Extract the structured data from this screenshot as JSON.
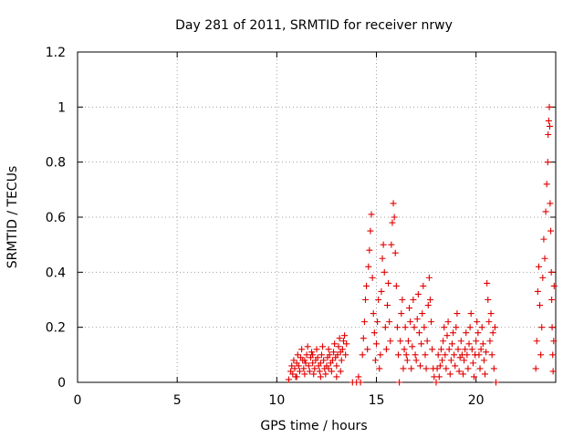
{
  "chart_data": {
    "type": "scatter",
    "title": "Day 281 of 2011, SRMTID for receiver nrwy",
    "xlabel": "GPS time / hours",
    "ylabel": "SRMTID / TECUs",
    "xlim": [
      0,
      24
    ],
    "ylim": [
      0,
      1.2
    ],
    "xticks": [
      0,
      5,
      10,
      15,
      20
    ],
    "xtick_labels": [
      "0",
      "5",
      "10",
      "15",
      "20"
    ],
    "yticks": [
      0,
      0.2,
      0.4,
      0.6,
      0.8,
      1,
      1.2
    ],
    "ytick_labels": [
      "0",
      "0.2",
      "0.4",
      "0.6",
      "0.8",
      "1",
      "1.2"
    ],
    "grid": true,
    "marker": "+",
    "color": "#e00000",
    "series": [
      {
        "name": "SRMTID",
        "points": [
          [
            10.6,
            0.01
          ],
          [
            10.7,
            0.04
          ],
          [
            10.75,
            0.06
          ],
          [
            10.8,
            0.03
          ],
          [
            10.85,
            0.08
          ],
          [
            10.9,
            0.05
          ],
          [
            10.95,
            0.02
          ],
          [
            11.0,
            0.07
          ],
          [
            11.05,
            0.1
          ],
          [
            11.1,
            0.06
          ],
          [
            11.15,
            0.04
          ],
          [
            11.2,
            0.09
          ],
          [
            11.25,
            0.12
          ],
          [
            11.3,
            0.08
          ],
          [
            11.35,
            0.05
          ],
          [
            11.4,
            0.03
          ],
          [
            11.45,
            0.07
          ],
          [
            11.5,
            0.1
          ],
          [
            11.55,
            0.13
          ],
          [
            11.6,
            0.06
          ],
          [
            11.65,
            0.04
          ],
          [
            11.7,
            0.09
          ],
          [
            11.75,
            0.11
          ],
          [
            11.8,
            0.07
          ],
          [
            11.85,
            0.03
          ],
          [
            11.9,
            0.05
          ],
          [
            11.95,
            0.08
          ],
          [
            12.0,
            0.12
          ],
          [
            12.05,
            0.09
          ],
          [
            12.1,
            0.06
          ],
          [
            12.15,
            0.04
          ],
          [
            12.2,
            0.07
          ],
          [
            12.25,
            0.1
          ],
          [
            12.3,
            0.13
          ],
          [
            12.35,
            0.08
          ],
          [
            12.4,
            0.05
          ],
          [
            12.45,
            0.03
          ],
          [
            12.5,
            0.06
          ],
          [
            12.55,
            0.09
          ],
          [
            12.6,
            0.12
          ],
          [
            12.65,
            0.1
          ],
          [
            12.7,
            0.07
          ],
          [
            12.75,
            0.04
          ],
          [
            12.8,
            0.08
          ],
          [
            12.85,
            0.11
          ],
          [
            12.9,
            0.14
          ],
          [
            12.95,
            0.09
          ],
          [
            13.0,
            0.06
          ],
          [
            13.05,
            0.1
          ],
          [
            13.1,
            0.13
          ],
          [
            13.15,
            0.16
          ],
          [
            13.2,
            0.11
          ],
          [
            13.25,
            0.08
          ],
          [
            13.3,
            0.12
          ],
          [
            13.35,
            0.15
          ],
          [
            13.4,
            0.17
          ],
          [
            13.45,
            0.1
          ],
          [
            13.5,
            0.14
          ],
          [
            11.0,
            0.02
          ],
          [
            11.4,
            0.08
          ],
          [
            11.8,
            0.1
          ],
          [
            12.2,
            0.02
          ],
          [
            12.6,
            0.05
          ],
          [
            13.0,
            0.02
          ],
          [
            13.2,
            0.04
          ],
          [
            13.8,
            0.0
          ],
          [
            14.0,
            0.0
          ],
          [
            14.2,
            0.0
          ],
          [
            14.1,
            0.02
          ],
          [
            14.3,
            0.1
          ],
          [
            14.35,
            0.16
          ],
          [
            14.4,
            0.22
          ],
          [
            14.45,
            0.3
          ],
          [
            14.5,
            0.35
          ],
          [
            14.55,
            0.12
          ],
          [
            14.6,
            0.42
          ],
          [
            14.65,
            0.48
          ],
          [
            14.7,
            0.55
          ],
          [
            14.75,
            0.61
          ],
          [
            14.8,
            0.38
          ],
          [
            14.85,
            0.25
          ],
          [
            14.9,
            0.18
          ],
          [
            14.95,
            0.08
          ],
          [
            15.0,
            0.14
          ],
          [
            15.05,
            0.22
          ],
          [
            15.1,
            0.3
          ],
          [
            15.15,
            0.05
          ],
          [
            15.2,
            0.1
          ],
          [
            15.25,
            0.33
          ],
          [
            15.3,
            0.45
          ],
          [
            15.35,
            0.5
          ],
          [
            15.4,
            0.4
          ],
          [
            15.45,
            0.2
          ],
          [
            15.5,
            0.12
          ],
          [
            15.55,
            0.28
          ],
          [
            15.6,
            0.36
          ],
          [
            15.65,
            0.22
          ],
          [
            15.7,
            0.15
          ],
          [
            15.75,
            0.5
          ],
          [
            15.8,
            0.58
          ],
          [
            15.85,
            0.65
          ],
          [
            15.9,
            0.6
          ],
          [
            15.95,
            0.47
          ],
          [
            16.0,
            0.35
          ],
          [
            16.05,
            0.2
          ],
          [
            16.1,
            0.1
          ],
          [
            16.15,
            0.0
          ],
          [
            16.2,
            0.15
          ],
          [
            16.25,
            0.25
          ],
          [
            16.3,
            0.3
          ],
          [
            16.35,
            0.05
          ],
          [
            16.4,
            0.12
          ],
          [
            16.45,
            0.2
          ],
          [
            16.5,
            0.1
          ],
          [
            16.55,
            0.08
          ],
          [
            16.6,
            0.15
          ],
          [
            16.65,
            0.27
          ],
          [
            16.7,
            0.22
          ],
          [
            16.75,
            0.05
          ],
          [
            16.8,
            0.13
          ],
          [
            16.85,
            0.3
          ],
          [
            16.9,
            0.2
          ],
          [
            16.95,
            0.1
          ],
          [
            17.0,
            0.08
          ],
          [
            17.05,
            0.23
          ],
          [
            17.1,
            0.32
          ],
          [
            17.15,
            0.18
          ],
          [
            17.2,
            0.06
          ],
          [
            17.25,
            0.14
          ],
          [
            17.3,
            0.25
          ],
          [
            17.35,
            0.35
          ],
          [
            17.4,
            0.2
          ],
          [
            17.45,
            0.1
          ],
          [
            17.5,
            0.05
          ],
          [
            17.55,
            0.15
          ],
          [
            17.6,
            0.28
          ],
          [
            17.65,
            0.38
          ],
          [
            17.7,
            0.3
          ],
          [
            17.75,
            0.22
          ],
          [
            17.8,
            0.12
          ],
          [
            17.85,
            0.05
          ],
          [
            17.9,
            0.02
          ],
          [
            18.0,
            0.0
          ],
          [
            18.05,
            0.05
          ],
          [
            18.1,
            0.1
          ],
          [
            18.15,
            0.02
          ],
          [
            18.2,
            0.06
          ],
          [
            18.25,
            0.12
          ],
          [
            18.3,
            0.08
          ],
          [
            18.35,
            0.15
          ],
          [
            18.4,
            0.2
          ],
          [
            18.45,
            0.1
          ],
          [
            18.5,
            0.05
          ],
          [
            18.55,
            0.17
          ],
          [
            18.6,
            0.22
          ],
          [
            18.65,
            0.12
          ],
          [
            18.7,
            0.03
          ],
          [
            18.75,
            0.08
          ],
          [
            18.8,
            0.14
          ],
          [
            18.85,
            0.18
          ],
          [
            18.9,
            0.1
          ],
          [
            18.95,
            0.06
          ],
          [
            19.0,
            0.2
          ],
          [
            19.05,
            0.25
          ],
          [
            19.1,
            0.12
          ],
          [
            19.15,
            0.04
          ],
          [
            19.2,
            0.09
          ],
          [
            19.25,
            0.15
          ],
          [
            19.3,
            0.1
          ],
          [
            19.35,
            0.03
          ],
          [
            19.4,
            0.08
          ],
          [
            19.45,
            0.12
          ],
          [
            19.5,
            0.18
          ],
          [
            19.55,
            0.1
          ],
          [
            19.6,
            0.05
          ],
          [
            19.65,
            0.14
          ],
          [
            19.7,
            0.2
          ],
          [
            19.75,
            0.25
          ],
          [
            19.8,
            0.12
          ],
          [
            19.85,
            0.07
          ],
          [
            19.9,
            0.02
          ],
          [
            19.95,
            0.1
          ],
          [
            20.0,
            0.15
          ],
          [
            20.05,
            0.22
          ],
          [
            20.1,
            0.18
          ],
          [
            20.15,
            0.1
          ],
          [
            20.2,
            0.05
          ],
          [
            20.25,
            0.12
          ],
          [
            20.3,
            0.2
          ],
          [
            20.35,
            0.14
          ],
          [
            20.4,
            0.08
          ],
          [
            20.45,
            0.03
          ],
          [
            20.5,
            0.11
          ],
          [
            20.55,
            0.36
          ],
          [
            20.6,
            0.3
          ],
          [
            20.65,
            0.22
          ],
          [
            20.7,
            0.15
          ],
          [
            20.75,
            0.25
          ],
          [
            20.8,
            0.1
          ],
          [
            20.85,
            0.18
          ],
          [
            20.9,
            0.05
          ],
          [
            20.95,
            0.2
          ],
          [
            21.0,
            0.0
          ],
          [
            23.0,
            0.05
          ],
          [
            23.05,
            0.15
          ],
          [
            23.1,
            0.33
          ],
          [
            23.15,
            0.42
          ],
          [
            23.2,
            0.28
          ],
          [
            23.25,
            0.1
          ],
          [
            23.3,
            0.2
          ],
          [
            23.35,
            0.38
          ],
          [
            23.4,
            0.52
          ],
          [
            23.45,
            0.45
          ],
          [
            23.5,
            0.62
          ],
          [
            23.55,
            0.72
          ],
          [
            23.6,
            0.8
          ],
          [
            23.62,
            0.9
          ],
          [
            23.65,
            0.95
          ],
          [
            23.68,
            1.0
          ],
          [
            23.7,
            0.93
          ],
          [
            23.72,
            0.65
          ],
          [
            23.75,
            0.55
          ],
          [
            23.78,
            0.4
          ],
          [
            23.8,
            0.3
          ],
          [
            23.82,
            0.2
          ],
          [
            23.85,
            0.1
          ],
          [
            23.87,
            0.04
          ],
          [
            23.9,
            0.15
          ],
          [
            23.92,
            0.35
          ]
        ]
      }
    ]
  }
}
